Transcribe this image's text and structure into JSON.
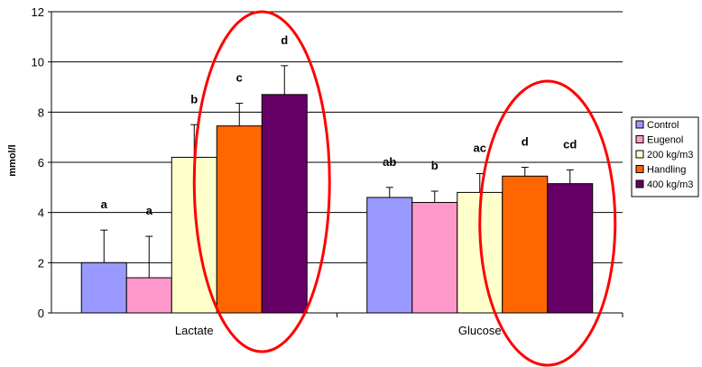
{
  "chart_data": {
    "type": "bar",
    "title": "",
    "xlabel": "",
    "ylabel": "mmol/l",
    "ylim": [
      0,
      12
    ],
    "yticks": [
      0,
      2,
      4,
      6,
      8,
      10,
      12
    ],
    "grid": true,
    "legend_position": "right",
    "categories": [
      "Lactate",
      "Glucose"
    ],
    "series": [
      {
        "name": "Control",
        "color": "#9999FF",
        "values": [
          2.0,
          4.6
        ],
        "errors": [
          1.3,
          0.4
        ],
        "sig": [
          "a",
          "ab"
        ]
      },
      {
        "name": "Eugenol",
        "color": "#FF99CC",
        "values": [
          1.4,
          4.4
        ],
        "errors": [
          1.65,
          0.45
        ],
        "sig": [
          "a",
          "b"
        ]
      },
      {
        "name": "200 kg/m3",
        "color": "#FFFFCC",
        "values": [
          6.2,
          4.8
        ],
        "errors": [
          1.3,
          0.75
        ],
        "sig": [
          "b",
          "ac"
        ]
      },
      {
        "name": "Handling",
        "color": "#FF6600",
        "values": [
          7.45,
          5.45
        ],
        "errors": [
          0.9,
          0.35
        ],
        "sig": [
          "c",
          "d"
        ]
      },
      {
        "name": "400 kg/m3",
        "color": "#660066",
        "values": [
          8.7,
          5.15
        ],
        "errors": [
          1.15,
          0.55
        ],
        "sig": [
          "d",
          "cd"
        ]
      }
    ],
    "annotations": [
      {
        "type": "ellipse",
        "color": "#FF0000",
        "around": "Lactate: Handling, 400 kg/m3"
      },
      {
        "type": "ellipse",
        "color": "#FF0000",
        "around": "Glucose: Handling, 400 kg/m3"
      }
    ]
  }
}
